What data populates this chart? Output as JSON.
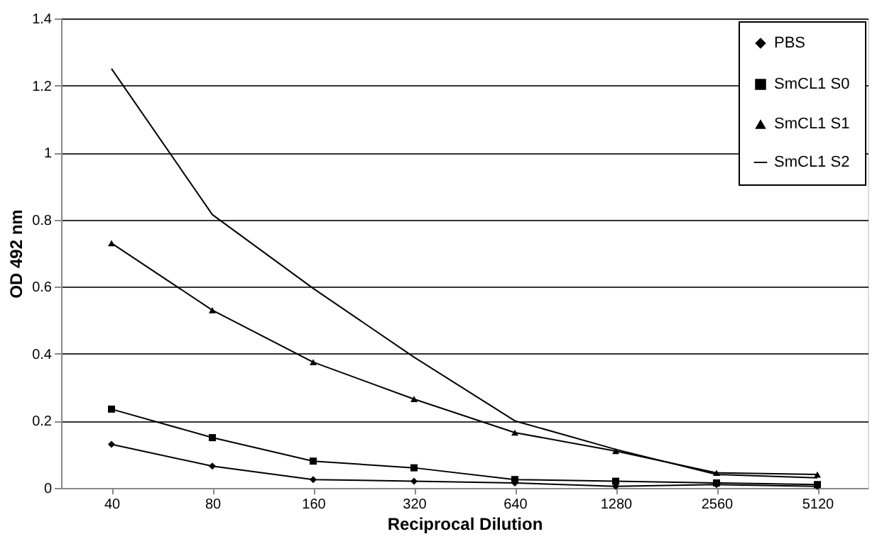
{
  "chart_data": {
    "type": "line",
    "xlabel": "Reciprocal Dilution",
    "ylabel": "OD 492 nm",
    "categories": [
      "40",
      "80",
      "160",
      "320",
      "640",
      "1280",
      "2560",
      "5120"
    ],
    "series": [
      {
        "name": "PBS",
        "color": "#000000",
        "marker": "diamond",
        "values": [
          0.13,
          0.065,
          0.025,
          0.02,
          0.015,
          0.005,
          0.01,
          0.005
        ]
      },
      {
        "name": "SmCL1 S0",
        "color": "#000000",
        "marker": "square",
        "values": [
          0.235,
          0.15,
          0.08,
          0.06,
          0.025,
          0.02,
          0.015,
          0.01
        ]
      },
      {
        "name": "SmCL1 S1",
        "color": "#000000",
        "marker": "triangle",
        "values": [
          0.73,
          0.53,
          0.375,
          0.265,
          0.165,
          0.11,
          0.045,
          0.04
        ]
      },
      {
        "name": "SmCL1 S2",
        "color": "#000000",
        "marker": "none",
        "values": [
          1.25,
          0.815,
          0.595,
          0.39,
          0.2,
          0.115,
          0.04,
          0.03
        ]
      }
    ],
    "ylim": [
      0,
      1.4
    ],
    "yticks": [
      0,
      0.2,
      0.4,
      0.6,
      0.8,
      1,
      1.2,
      1.4
    ],
    "grid": "y",
    "legend": "top right",
    "line_style": "solid"
  }
}
